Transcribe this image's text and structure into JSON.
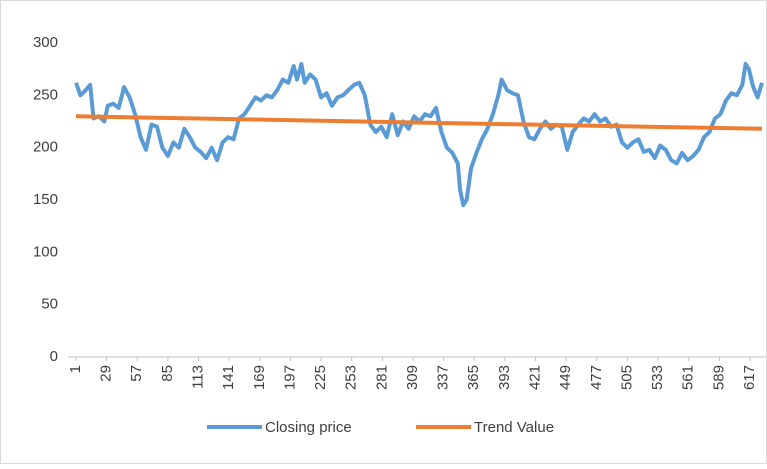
{
  "chart_data": {
    "type": "line",
    "x": [
      1,
      5,
      10,
      14,
      17,
      22,
      27,
      30,
      35,
      40,
      45,
      50,
      55,
      60,
      65,
      70,
      75,
      80,
      85,
      90,
      95,
      100,
      105,
      110,
      115,
      120,
      125,
      130,
      135,
      140,
      145,
      150,
      155,
      160,
      165,
      170,
      175,
      180,
      185,
      190,
      195,
      200,
      203,
      207,
      210,
      215,
      220,
      225,
      230,
      235,
      240,
      245,
      250,
      255,
      260,
      265,
      270,
      275,
      280,
      285,
      290,
      295,
      300,
      305,
      310,
      315,
      320,
      325,
      330,
      335,
      340,
      345,
      350,
      352,
      355,
      358,
      362,
      367,
      372,
      377,
      382,
      387,
      390,
      395,
      400,
      405,
      410,
      415,
      420,
      425,
      430,
      435,
      440,
      445,
      450,
      455,
      460,
      465,
      470,
      475,
      480,
      485,
      490,
      495,
      500,
      505,
      510,
      515,
      520,
      525,
      530,
      535,
      540,
      545,
      550,
      555,
      560,
      565,
      570,
      575,
      580,
      585,
      590,
      595,
      600,
      605,
      610,
      613,
      616,
      620,
      624,
      628
    ],
    "series": [
      {
        "name": "Closing price",
        "color": "#5b9bd5",
        "values": [
          262,
          250,
          255,
          260,
          228,
          230,
          225,
          240,
          242,
          238,
          258,
          248,
          232,
          210,
          198,
          222,
          220,
          200,
          192,
          205,
          200,
          218,
          210,
          200,
          196,
          190,
          200,
          188,
          205,
          210,
          208,
          228,
          232,
          240,
          248,
          245,
          250,
          248,
          255,
          265,
          262,
          278,
          265,
          280,
          262,
          270,
          265,
          248,
          252,
          240,
          248,
          250,
          255,
          260,
          262,
          250,
          222,
          215,
          220,
          210,
          232,
          212,
          225,
          218,
          230,
          225,
          232,
          230,
          238,
          215,
          200,
          195,
          185,
          160,
          145,
          150,
          180,
          195,
          208,
          218,
          232,
          250,
          265,
          255,
          252,
          250,
          225,
          210,
          208,
          218,
          225,
          218,
          222,
          220,
          198,
          215,
          222,
          228,
          225,
          232,
          225,
          228,
          220,
          222,
          205,
          200,
          205,
          208,
          196,
          198,
          190,
          202,
          198,
          188,
          185,
          195,
          188,
          192,
          198,
          210,
          215,
          228,
          232,
          245,
          252,
          250,
          260,
          280,
          275,
          258,
          248,
          262
        ]
      },
      {
        "name": "Trend Value",
        "color": "#ed7d31",
        "x": [
          1,
          628
        ],
        "values": [
          230,
          218
        ]
      }
    ],
    "xlim": [
      1,
      628
    ],
    "xticks": [
      1,
      29,
      57,
      85,
      113,
      141,
      169,
      197,
      225,
      253,
      281,
      309,
      337,
      365,
      393,
      421,
      449,
      477,
      505,
      533,
      561,
      589,
      617
    ],
    "ylim": [
      0,
      300
    ],
    "yticks": [
      0,
      50,
      100,
      150,
      200,
      250,
      300
    ],
    "grid": false
  }
}
